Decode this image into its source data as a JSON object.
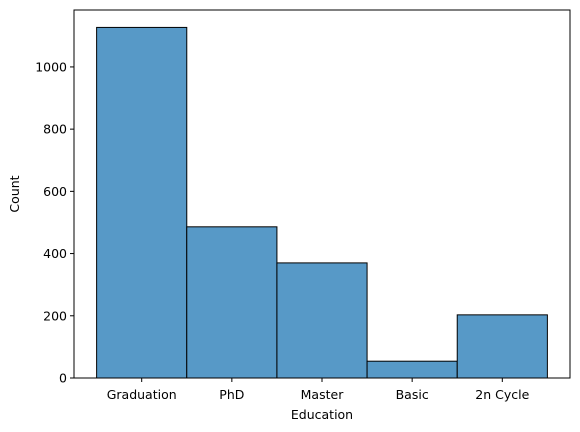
{
  "chart_data": {
    "type": "bar",
    "title": "",
    "xlabel": "Education",
    "ylabel": "Count",
    "categories": [
      "Graduation",
      "PhD",
      "Master",
      "Basic",
      "2n Cycle"
    ],
    "values": [
      1127,
      486,
      370,
      54,
      203
    ],
    "ylim": [
      0,
      1183
    ],
    "yticks": [
      0,
      200,
      400,
      600,
      800,
      1000
    ],
    "grid": false,
    "legend": "none",
    "bar_color": "#5799c7",
    "edge_color": "#000000"
  }
}
